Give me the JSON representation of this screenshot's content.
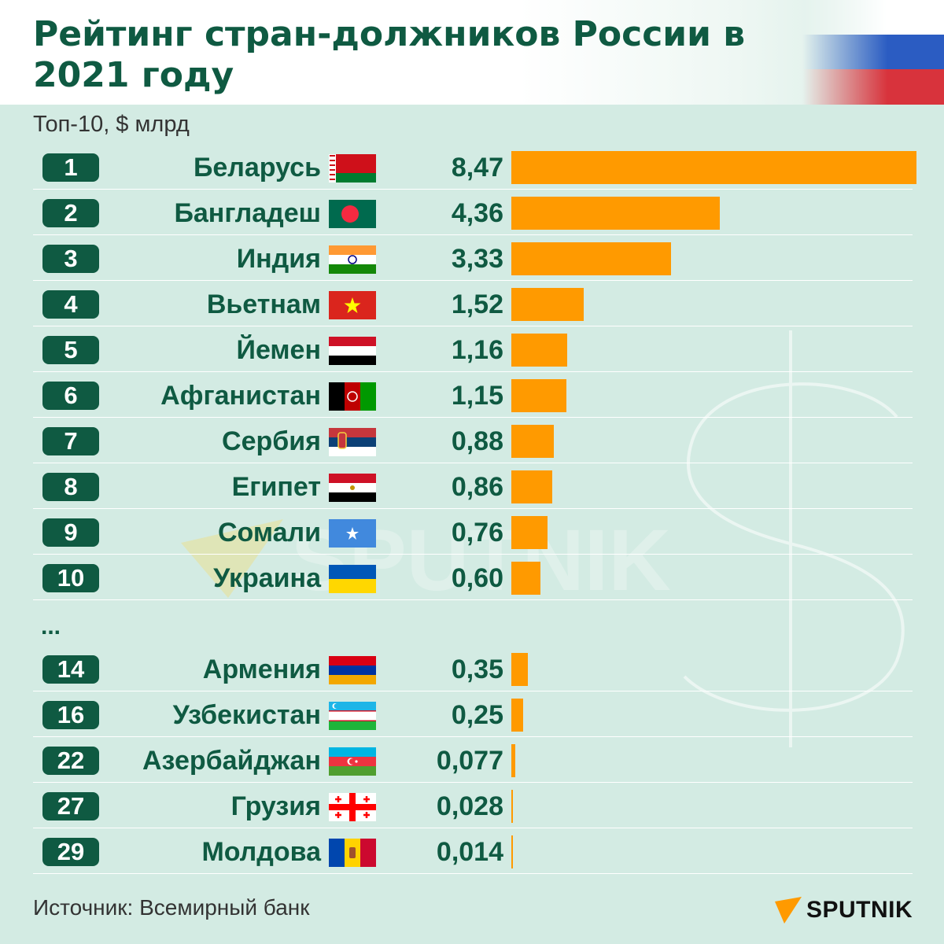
{
  "title": "Рейтинг стран-должников России в 2021 году",
  "subtitle": "Топ-10, $ млрд",
  "ellipsis": "...",
  "source": "Источник: Всемирный банк",
  "brand": "SPUTNIK",
  "colors": {
    "bar": "#ff9a00",
    "accent": "#0f5a42",
    "background": "#d3ebe3"
  },
  "chart_data": {
    "type": "bar",
    "orientation": "horizontal",
    "title": "Рейтинг стран-должников России в 2021 году",
    "subtitle": "Топ-10, $ млрд",
    "xlim": [
      0,
      8.47
    ],
    "rows": [
      {
        "rank": "1",
        "country": "Беларусь",
        "flag": "belarus-flag",
        "value": 8.47,
        "label": "8,47"
      },
      {
        "rank": "2",
        "country": "Бангладеш",
        "flag": "bangladesh-flag",
        "value": 4.36,
        "label": "4,36"
      },
      {
        "rank": "3",
        "country": "Индия",
        "flag": "india-flag",
        "value": 3.33,
        "label": "3,33"
      },
      {
        "rank": "4",
        "country": "Вьетнам",
        "flag": "vietnam-flag",
        "value": 1.52,
        "label": "1,52"
      },
      {
        "rank": "5",
        "country": "Йемен",
        "flag": "yemen-flag",
        "value": 1.16,
        "label": "1,16"
      },
      {
        "rank": "6",
        "country": "Афганистан",
        "flag": "afghanistan-flag",
        "value": 1.15,
        "label": "1,15"
      },
      {
        "rank": "7",
        "country": "Сербия",
        "flag": "serbia-flag",
        "value": 0.88,
        "label": "0,88"
      },
      {
        "rank": "8",
        "country": "Египет",
        "flag": "egypt-flag",
        "value": 0.86,
        "label": "0,86"
      },
      {
        "rank": "9",
        "country": "Сомали",
        "flag": "somalia-flag",
        "value": 0.76,
        "label": "0,76"
      },
      {
        "rank": "10",
        "country": "Украина",
        "flag": "ukraine-flag",
        "value": 0.6,
        "label": "0,60"
      },
      {
        "rank": "14",
        "country": "Армения",
        "flag": "armenia-flag",
        "value": 0.35,
        "label": "0,35"
      },
      {
        "rank": "16",
        "country": "Узбекистан",
        "flag": "uzbekistan-flag",
        "value": 0.25,
        "label": "0,25"
      },
      {
        "rank": "22",
        "country": "Азербайджан",
        "flag": "azerbaijan-flag",
        "value": 0.077,
        "label": "0,077"
      },
      {
        "rank": "27",
        "country": "Грузия",
        "flag": "georgia-flag",
        "value": 0.028,
        "label": "0,028"
      },
      {
        "rank": "29",
        "country": "Молдова",
        "flag": "moldova-flag",
        "value": 0.014,
        "label": "0,014"
      }
    ]
  }
}
